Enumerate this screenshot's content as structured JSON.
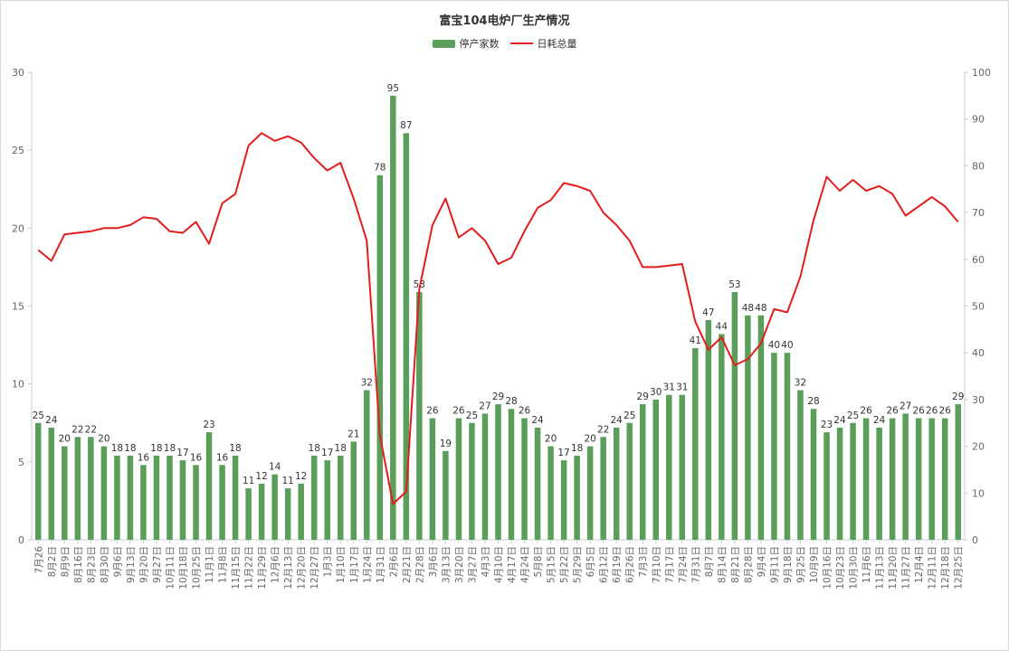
{
  "chart_data": {
    "type": "bar",
    "title": "富宝104电炉厂生产情况",
    "legend_position": "top-center",
    "grid": false,
    "categories": [
      "7月26",
      "8月2日",
      "8月9日",
      "8月16日",
      "8月23日",
      "8月30日",
      "9月6日",
      "9月13日",
      "9月20日",
      "9月27日",
      "10月11日",
      "10月18日",
      "10月25日",
      "11月1日",
      "11月8日",
      "11月15日",
      "11月22日",
      "11月29日",
      "12月6日",
      "12月13日",
      "12月20日",
      "12月27日",
      "1月3日",
      "1月10日",
      "1月17日",
      "1月24日",
      "1月31日",
      "2月6日",
      "2月21日",
      "2月28日",
      "3月6日",
      "3月13日",
      "3月20日",
      "3月27日",
      "4月3日",
      "4月10日",
      "4月17日",
      "4月24日",
      "5月8日",
      "5月15日",
      "5月22日",
      "5月29日",
      "6月5日",
      "6月12日",
      "6月19日",
      "6月26日",
      "7月3日",
      "7月10日",
      "7月17日",
      "7月24日",
      "7月31日",
      "8月7日",
      "8月14日",
      "8月21日",
      "8月28日",
      "9月4日",
      "9月11日",
      "9月18日",
      "9月25日",
      "10月9日",
      "10月16日",
      "10月23日",
      "10月30日",
      "11月6日",
      "11月13日",
      "11月20日",
      "11月27日",
      "12月4日",
      "12月11日",
      "12月18日",
      "12月25日"
    ],
    "series": [
      {
        "name": "停产家数",
        "kind": "bar",
        "axis": "right",
        "color": "#5b9e5b",
        "values": [
          25,
          24,
          20,
          22,
          22,
          20,
          18,
          18,
          16,
          18,
          18,
          17,
          16,
          23,
          16,
          18,
          11,
          12,
          14,
          11,
          12,
          18,
          17,
          18,
          21,
          32,
          78,
          95,
          87,
          53,
          26,
          19,
          26,
          25,
          27,
          29,
          28,
          26,
          24,
          20,
          17,
          18,
          20,
          22,
          24,
          25,
          29,
          30,
          31,
          31,
          41,
          47,
          44,
          53,
          48,
          48,
          40,
          40,
          32,
          28,
          23,
          24,
          25,
          26,
          24,
          26,
          27,
          26,
          26,
          26,
          29
        ]
      },
      {
        "name": "日耗总量",
        "kind": "line",
        "axis": "left",
        "color": "#e31c1c",
        "values": [
          18.6,
          17.9,
          19.6,
          19.7,
          19.8,
          20.0,
          20.0,
          20.2,
          20.7,
          20.6,
          19.8,
          19.7,
          20.4,
          19.0,
          21.6,
          22.2,
          25.3,
          26.1,
          25.6,
          25.9,
          25.5,
          24.5,
          23.7,
          24.2,
          21.9,
          19.2,
          6.7,
          2.3,
          3.1,
          16.1,
          20.2,
          21.9,
          19.4,
          20.0,
          19.2,
          17.7,
          18.1,
          19.8,
          21.3,
          21.8,
          22.9,
          22.7,
          22.4,
          21.0,
          20.2,
          19.2,
          17.5,
          17.5,
          17.6,
          17.7,
          14.0,
          12.2,
          13.0,
          11.2,
          11.6,
          12.6,
          14.8,
          14.6,
          16.9,
          20.5,
          23.3,
          22.4,
          23.1,
          22.4,
          22.7,
          22.2,
          20.8,
          21.4,
          22.0,
          21.4,
          20.4
        ]
      }
    ],
    "y_left": {
      "min": 0,
      "max": 30,
      "ticks": [
        "0",
        "5",
        "10",
        "15",
        "20",
        "25",
        "30"
      ]
    },
    "y_right": {
      "min": 0,
      "max": 100,
      "ticks": [
        "0",
        "10",
        "20",
        "30",
        "40",
        "50",
        "60",
        "70",
        "80",
        "90",
        "100"
      ]
    }
  }
}
